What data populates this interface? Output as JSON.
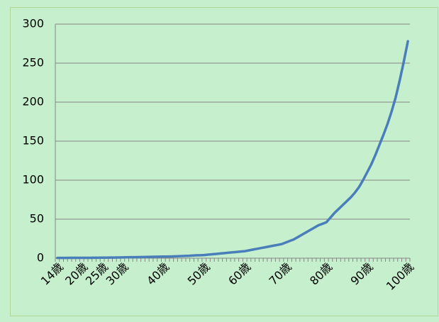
{
  "chart_data": {
    "type": "line",
    "categories": [
      "14歳",
      null,
      null,
      null,
      null,
      null,
      "20歳",
      null,
      null,
      null,
      null,
      "25歳",
      null,
      null,
      null,
      null,
      "30歳",
      null,
      null,
      null,
      null,
      null,
      null,
      null,
      null,
      null,
      "40歳",
      null,
      null,
      null,
      null,
      null,
      null,
      null,
      null,
      null,
      "50歳",
      null,
      null,
      null,
      null,
      null,
      null,
      null,
      null,
      null,
      "60歳",
      null,
      null,
      null,
      null,
      null,
      null,
      null,
      null,
      null,
      "70歳",
      null,
      null,
      null,
      null,
      null,
      null,
      null,
      null,
      null,
      "80歳",
      null,
      null,
      null,
      null,
      null,
      null,
      null,
      null,
      null,
      "90歳",
      null,
      null,
      null,
      null,
      null,
      null,
      null,
      null,
      null,
      "100歳"
    ],
    "series": [
      {
        "color": "#4a7ebb",
        "values": [
          0.3,
          0.3,
          0.3,
          0.4,
          0.4,
          0.4,
          0.5,
          0.5,
          0.5,
          0.6,
          0.6,
          0.7,
          0.7,
          0.8,
          0.8,
          0.9,
          1,
          1.1,
          1.2,
          1.3,
          1.4,
          1.5,
          1.6,
          1.7,
          1.8,
          1.9,
          2,
          2.1,
          2.2,
          2.4,
          2.6,
          2.8,
          3,
          3.3,
          3.6,
          3.8,
          4,
          4.5,
          5,
          5.5,
          6,
          6.5,
          7,
          7.5,
          8,
          8.5,
          9,
          10,
          11,
          12,
          13,
          14,
          15,
          16,
          17,
          18,
          20,
          22,
          24,
          27,
          30,
          33,
          36,
          39,
          42,
          44,
          46,
          52,
          58,
          63,
          68,
          73,
          78,
          84,
          91,
          100,
          110,
          120,
          132,
          145,
          158,
          172,
          188,
          206,
          228,
          252,
          278
        ]
      }
    ],
    "ylim": [
      0,
      300
    ],
    "yticks": [
      0,
      50,
      100,
      150,
      200,
      250,
      300
    ],
    "grid": true
  }
}
